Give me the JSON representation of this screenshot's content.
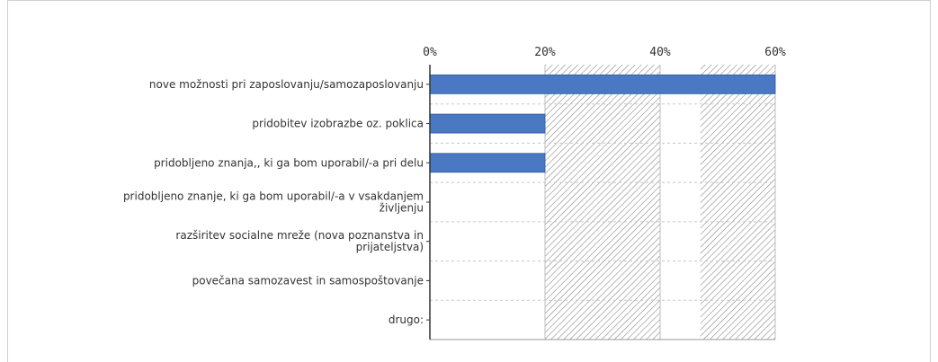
{
  "chart_data": {
    "type": "bar",
    "orientation": "horizontal",
    "title": "",
    "xlabel": "",
    "ylabel": "",
    "xlim": [
      0,
      60
    ],
    "ticks": [
      "0%",
      "20%",
      "40%",
      "60%"
    ],
    "categories": [
      "nove možnosti pri zaposlovanju/samozaposlovanju",
      "pridobitev izobrazbe oz. poklica",
      "pridobljeno znanja,, ki ga bom uporabil/-a pri delu",
      "pridobljeno znanje, ki ga  bom uporabil/-a v vsakdanjem življenju",
      "razširitev socialne mreže (nova poznanstva in prijateljstva)",
      "povečana samozavest in samospoštovanje",
      "drugo:"
    ],
    "category_lines": [
      [
        "nove možnosti pri zaposlovanju/samozaposlovanju"
      ],
      [
        "pridobitev izobrazbe oz. poklica"
      ],
      [
        "pridobljeno znanja,, ki ga bom uporabil/-a pri delu"
      ],
      [
        "pridobljeno znanje, ki ga  bom uporabil/-a v vsakdanjem",
        "življenju"
      ],
      [
        "razširitev socialne mreže (nova poznanstva in",
        "prijateljstva)"
      ],
      [
        "povečana samozavest in samospoštovanje"
      ],
      [
        "drugo:"
      ]
    ],
    "values": [
      60,
      20,
      20,
      0,
      0,
      0,
      0
    ],
    "bar_color": "#4a78c2",
    "background_pattern": "hatched",
    "grid": true,
    "legend": "none"
  }
}
